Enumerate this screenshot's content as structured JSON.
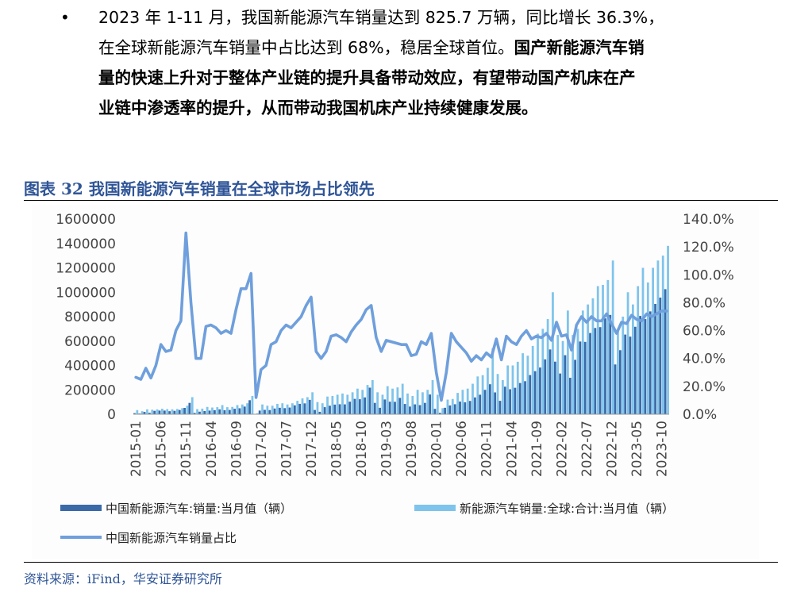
{
  "text": {
    "bullet": "•",
    "line1": "2023 年 1-11 月，我国新能源汽车销量达到 825.7 万辆，同比增长 36.3%，",
    "line2_normal": "在全球新能源汽车销量中占比达到 68%，稳居全球首位。",
    "line2_bold": "国产新能源汽车销",
    "line3": "量的快速上升对于整体产业链的提升具备带动效应，有望带动国产机床在产",
    "line4": "业链中渗透率的提升，从而带动我国机床产业持续健康发展。"
  },
  "figure_title": "图表 32  我国新能源汽车销量在全球市场占比领先",
  "source": "资料来源：iFind，华安证券研究所",
  "colors": {
    "china_bar": "#3a6aa8",
    "global_bar": "#7fc4ec",
    "share_line": "#6f9fdc",
    "title": "#2f5597"
  },
  "chart_data": {
    "type": "bar+line",
    "x_start": "2015-01",
    "x_end": "2023-11",
    "tick_labels": [
      "2015-01",
      "2015-06",
      "2015-11",
      "2016-04",
      "2016-09",
      "2017-02",
      "2017-07",
      "2017-12",
      "2018-05",
      "2018-10",
      "2019-03",
      "2019-08",
      "2020-01",
      "2020-06",
      "2020-11",
      "2021-04",
      "2021-09",
      "2022-02",
      "2022-07",
      "2022-12",
      "2023-05",
      "2023-10"
    ],
    "y_left": {
      "min": 0,
      "max": 1600000,
      "ticks": [
        "0",
        "200000",
        "400000",
        "600000",
        "800000",
        "1000000",
        "1200000",
        "1400000",
        "1600000"
      ]
    },
    "y_right": {
      "min": 0,
      "max": 1.4,
      "ticks": [
        "0.0%",
        "20.0%",
        "40.0%",
        "60.0%",
        "80.0%",
        "100.0%",
        "120.0%",
        "140.0%"
      ]
    },
    "legend": {
      "china": "中国新能源汽车:销量:当月值（辆）",
      "global": "新能源汽车销量:全球:合计:当月值（辆）",
      "share": "中国新能源汽车销量占比"
    },
    "series": [
      {
        "name": "中国新能源汽车:销量:当月值（辆）",
        "axis": "left",
        "kind": "bar",
        "values": [
          9000,
          6000,
          19000,
          12000,
          28000,
          30000,
          30000,
          25000,
          28000,
          35000,
          52000,
          93000,
          11000,
          21000,
          26000,
          30000,
          33000,
          40000,
          33000,
          35000,
          45000,
          49000,
          63000,
          115000,
          2000,
          30000,
          36000,
          34000,
          47000,
          53000,
          50000,
          55000,
          73000,
          85000,
          89000,
          118000,
          35000,
          20000,
          58000,
          70000,
          79000,
          82000,
          81000,
          103000,
          126000,
          123000,
          138000,
          218000,
          93000,
          53000,
          121000,
          103000,
          102000,
          134000,
          84000,
          63000,
          81000,
          75000,
          93000,
          162000,
          44000,
          12000,
          53000,
          72000,
          82000,
          104000,
          98000,
          109000,
          138000,
          160000,
          200000,
          246000,
          179000,
          110000,
          226000,
          205000,
          217000,
          256000,
          271000,
          321000,
          353000,
          383000,
          450000,
          531000,
          431000,
          334000,
          484000,
          299000,
          446000,
          596000,
          593000,
          666000,
          707000,
          714000,
          786000,
          814000,
          408000,
          525000,
          653000,
          636000,
          717000,
          806000,
          780000,
          843000,
          904000,
          956000,
          1025000
        ],
        "note": "2023-12 not shown"
      },
      {
        "name": "新能源汽车销量:全球:合计:当月值（辆）",
        "axis": "left",
        "kind": "bar",
        "values": [
          34000,
          25000,
          40000,
          37000,
          40000,
          45000,
          42000,
          40000,
          43000,
          50000,
          70000,
          140000,
          42000,
          46000,
          60000,
          55000,
          58000,
          75000,
          58000,
          60000,
          75000,
          80000,
          90000,
          150000,
          8000,
          80000,
          70000,
          70000,
          85000,
          90000,
          80000,
          90000,
          110000,
          130000,
          140000,
          180000,
          100000,
          90000,
          145000,
          150000,
          160000,
          170000,
          160000,
          180000,
          210000,
          200000,
          240000,
          280000,
          180000,
          160000,
          230000,
          210000,
          220000,
          250000,
          170000,
          150000,
          200000,
          180000,
          200000,
          280000,
          160000,
          50000,
          120000,
          125000,
          175000,
          200000,
          210000,
          250000,
          310000,
          320000,
          380000,
          540000,
          330000,
          280000,
          400000,
          400000,
          430000,
          500000,
          480000,
          560000,
          660000,
          700000,
          780000,
          1000000,
          650000,
          600000,
          850000,
          650000,
          700000,
          850000,
          900000,
          950000,
          1050000,
          1060000,
          1100000,
          1260000,
          700000,
          800000,
          1000000,
          900000,
          1050000,
          1200000,
          1080000,
          1200000,
          1260000,
          1300000,
          1380000
        ],
        "note": "2023-12 not shown"
      },
      {
        "name": "中国新能源汽车销量占比",
        "axis": "right",
        "kind": "line",
        "values": [
          0.265,
          0.25,
          0.33,
          0.26,
          0.35,
          0.5,
          0.45,
          0.46,
          0.6,
          0.67,
          1.3,
          0.8,
          0.4,
          0.4,
          0.63,
          0.64,
          0.62,
          0.58,
          0.6,
          0.58,
          0.75,
          0.9,
          0.9,
          1.01,
          0.12,
          0.32,
          0.35,
          0.5,
          0.52,
          0.6,
          0.64,
          0.62,
          0.66,
          0.7,
          0.78,
          0.84,
          0.45,
          0.4,
          0.45,
          0.56,
          0.57,
          0.55,
          0.52,
          0.59,
          0.64,
          0.68,
          0.75,
          0.78,
          0.55,
          0.45,
          0.53,
          0.52,
          0.51,
          0.5,
          0.5,
          0.42,
          0.43,
          0.52,
          0.5,
          0.58,
          0.3,
          0.1,
          0.3,
          0.58,
          0.52,
          0.48,
          0.44,
          0.38,
          0.42,
          0.39,
          0.44,
          0.41,
          0.54,
          0.39,
          0.56,
          0.52,
          0.5,
          0.56,
          0.6,
          0.54,
          0.56,
          0.55,
          0.58,
          0.53,
          0.66,
          0.56,
          0.57,
          0.46,
          0.64,
          0.7,
          0.66,
          0.7,
          0.67,
          0.67,
          0.72,
          0.65,
          0.58,
          0.66,
          0.65,
          0.71,
          0.68,
          0.67,
          0.72,
          0.7,
          0.72,
          0.74,
          0.74
        ]
      }
    ]
  }
}
